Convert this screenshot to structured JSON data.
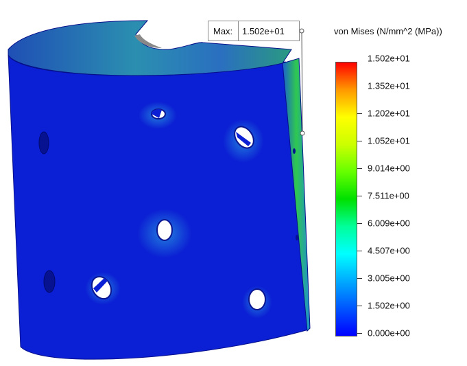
{
  "probe": {
    "label": "Max:",
    "value": "1.502e+01"
  },
  "legend": {
    "title": "von Mises (N/mm^2 (MPa))",
    "labels": [
      "1.502e+01",
      "1.352e+01",
      "1.202e+01",
      "1.052e+01",
      "9.014e+00",
      "7.511e+00",
      "6.009e+00",
      "4.507e+00",
      "3.005e+00",
      "1.502e+00",
      "0.000e+00"
    ],
    "max_color": "#ff0000",
    "min_color": "#0000ff"
  },
  "colors": {
    "background": "#ffffff",
    "part_blue": "#0a1fd6",
    "edge_green": "#2ccf3c"
  }
}
